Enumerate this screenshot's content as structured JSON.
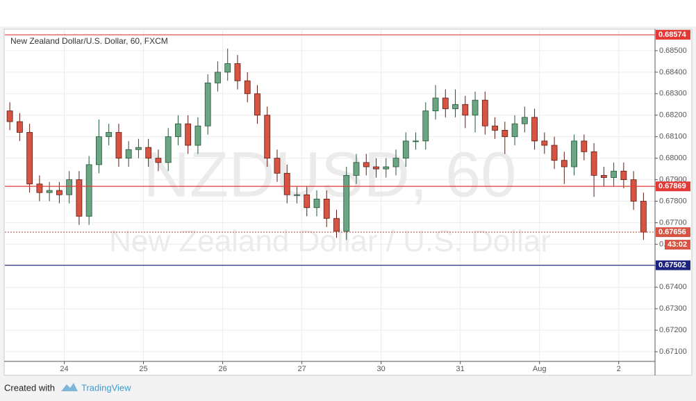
{
  "chart_data": {
    "type": "candlestick",
    "title": "New Zealand Dollar/U.S. Dollar, 60, FXCM",
    "watermark": "NZDUSD, 60",
    "watermark_subtitle": "New Zealand Dollar / U.S. Dollar",
    "footer_prefix": "Created with",
    "footer_brand": "TradingView",
    "countdown": "43:02",
    "up_color": "#6ba583",
    "down_color": "#d75442",
    "up_border": "#225437",
    "down_border": "#5b1a13",
    "grid": true,
    "x": [
      1.5,
      4.5,
      7.5,
      10.5,
      13.5,
      16.5,
      19.5,
      22.5,
      25.5,
      28.5,
      31.5,
      34.5,
      37.5,
      40.5,
      43.5,
      46.5,
      49.5,
      52.5,
      55.5,
      58.5,
      61.5,
      64.5,
      67.5,
      70.5,
      73.5,
      76.5,
      79.5,
      82.5,
      85.5,
      88.5,
      91.5,
      94.5,
      97.5,
      100.5,
      103.5,
      106.5,
      109.5,
      112.5,
      115.5,
      118.5,
      121.5,
      124.5,
      127.5,
      130.5,
      133.5,
      136.5,
      139.5,
      142.5,
      145.5,
      148.5,
      151.5,
      154.5,
      157.5,
      160.5,
      163.5,
      166.5,
      169.5,
      172.5,
      175.5,
      178.5,
      181.5,
      184.5,
      187.5,
      190.5,
      193.5
    ],
    "open": [
      0.6822,
      0.6817,
      0.6812,
      0.6788,
      0.6784,
      0.6785,
      0.6783,
      0.679,
      0.6773,
      0.6797,
      0.681,
      0.6812,
      0.68,
      0.6804,
      0.6805,
      0.68,
      0.6798,
      0.681,
      0.6816,
      0.6806,
      0.6815,
      0.6835,
      0.684,
      0.6844,
      0.6836,
      0.683,
      0.682,
      0.68,
      0.6793,
      0.6783,
      0.6783,
      0.6777,
      0.6781,
      0.6772,
      0.6766,
      0.6792,
      0.6798,
      0.6796,
      0.6795,
      0.6796,
      0.68,
      0.6808,
      0.6808,
      0.6822,
      0.6828,
      0.6823,
      0.6825,
      0.682,
      0.6827,
      0.6815,
      0.6813,
      0.681,
      0.6816,
      0.6819,
      0.6808,
      0.6806,
      0.6799,
      0.6796,
      0.6808,
      0.6803,
      0.6792,
      0.6791,
      0.6794,
      0.679,
      0.678
    ],
    "high": [
      0.6826,
      0.6821,
      0.6816,
      0.6792,
      0.6789,
      0.6789,
      0.6794,
      0.6794,
      0.6801,
      0.6818,
      0.6816,
      0.6816,
      0.6808,
      0.6809,
      0.6809,
      0.6804,
      0.6814,
      0.682,
      0.682,
      0.6819,
      0.6839,
      0.6845,
      0.6851,
      0.6848,
      0.684,
      0.6834,
      0.6824,
      0.6804,
      0.6797,
      0.6787,
      0.6787,
      0.6785,
      0.6785,
      0.6776,
      0.6796,
      0.6802,
      0.6802,
      0.68,
      0.68,
      0.6804,
      0.6812,
      0.6812,
      0.6826,
      0.6834,
      0.6832,
      0.6832,
      0.6829,
      0.6831,
      0.6831,
      0.6819,
      0.6817,
      0.682,
      0.6824,
      0.6823,
      0.6812,
      0.681,
      0.6803,
      0.6811,
      0.6811,
      0.6807,
      0.6796,
      0.6798,
      0.6798,
      0.6794,
      0.6784
    ],
    "low": [
      0.6813,
      0.6808,
      0.6784,
      0.678,
      0.678,
      0.6779,
      0.6779,
      0.6769,
      0.6769,
      0.6793,
      0.6806,
      0.6796,
      0.6796,
      0.68,
      0.6796,
      0.6794,
      0.6794,
      0.6806,
      0.6802,
      0.6802,
      0.6811,
      0.6831,
      0.6836,
      0.6832,
      0.6826,
      0.6816,
      0.6796,
      0.6789,
      0.6779,
      0.6779,
      0.6773,
      0.6773,
      0.6768,
      0.6763,
      0.6762,
      0.6788,
      0.6792,
      0.6791,
      0.6791,
      0.6792,
      0.6796,
      0.6804,
      0.6804,
      0.6818,
      0.6819,
      0.6819,
      0.6814,
      0.6812,
      0.6811,
      0.6809,
      0.6802,
      0.6806,
      0.6812,
      0.6804,
      0.6802,
      0.6795,
      0.6788,
      0.6792,
      0.6799,
      0.6782,
      0.6787,
      0.6787,
      0.6786,
      0.6776,
      0.6762
    ],
    "close": [
      0.6817,
      0.6812,
      0.6788,
      0.6784,
      0.6785,
      0.6783,
      0.679,
      0.6773,
      0.6797,
      0.681,
      0.6812,
      0.68,
      0.6804,
      0.6805,
      0.68,
      0.6798,
      0.681,
      0.6816,
      0.6806,
      0.6815,
      0.6835,
      0.684,
      0.6844,
      0.6836,
      0.683,
      0.682,
      0.68,
      0.6793,
      0.6783,
      0.6783,
      0.6777,
      0.6781,
      0.6772,
      0.6766,
      0.6792,
      0.6798,
      0.6796,
      0.6795,
      0.6796,
      0.68,
      0.6808,
      0.6808,
      0.6822,
      0.6828,
      0.6823,
      0.6825,
      0.682,
      0.6827,
      0.6815,
      0.6813,
      0.681,
      0.6816,
      0.6819,
      0.6808,
      0.6806,
      0.6799,
      0.6796,
      0.6808,
      0.6803,
      0.6792,
      0.6791,
      0.6794,
      0.679,
      0.678,
      0.67656
    ],
    "levels": [
      {
        "value": 0.68574,
        "color": "#e53935"
      },
      {
        "value": 0.67869,
        "color": "#e53935"
      },
      {
        "value": 0.67502,
        "color": "#1a237e"
      }
    ],
    "xlim": [
      0,
      197
    ],
    "ylim": [
      0.67055,
      0.686
    ],
    "xticks": [
      {
        "value": 18,
        "label": "24"
      },
      {
        "value": 42,
        "label": "25"
      },
      {
        "value": 66,
        "label": "26"
      },
      {
        "value": 90,
        "label": "27"
      },
      {
        "value": 114,
        "label": "30"
      },
      {
        "value": 138,
        "label": "31"
      },
      {
        "value": 162,
        "label": "Aug"
      },
      {
        "value": 186,
        "label": "2"
      }
    ],
    "yticks": [
      {
        "value": 0.671,
        "label": "0.67100"
      },
      {
        "value": 0.672,
        "label": "0.67200"
      },
      {
        "value": 0.673,
        "label": "0.67300"
      },
      {
        "value": 0.674,
        "label": "0.67400"
      },
      {
        "value": 0.675,
        "label": "0.67500"
      },
      {
        "value": 0.676,
        "label": "0.67600"
      },
      {
        "value": 0.677,
        "label": "0.67700"
      },
      {
        "value": 0.678,
        "label": "0.67800"
      },
      {
        "value": 0.679,
        "label": "0.67900"
      },
      {
        "value": 0.68,
        "label": "0.68000"
      },
      {
        "value": 0.681,
        "label": "0.68100"
      },
      {
        "value": 0.682,
        "label": "0.68200"
      },
      {
        "value": 0.683,
        "label": "0.68300"
      },
      {
        "value": 0.684,
        "label": "0.68400"
      },
      {
        "value": 0.685,
        "label": "0.68500"
      }
    ]
  }
}
